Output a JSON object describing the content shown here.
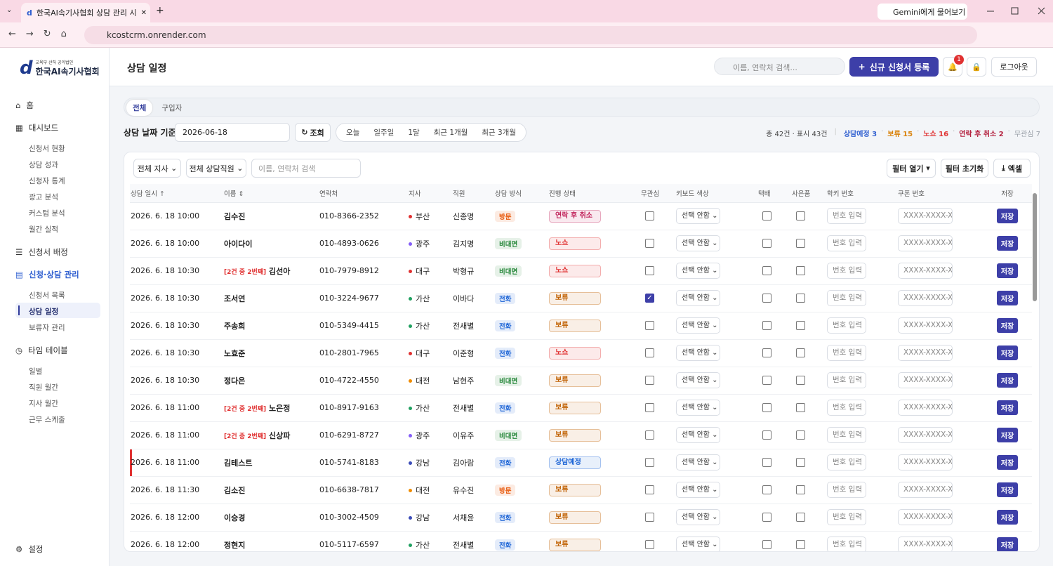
{
  "browser": {
    "tab_title": "한국AI속기사협회 상담 관리 시",
    "gemini": "Gemini에게 물어보기",
    "url": "kcostcrm.onrender.com"
  },
  "sidebar": {
    "logo_small": "교육부 산하 공익법인",
    "logo": "한국AI속기사협회",
    "sections": [
      {
        "label": "홈",
        "items": []
      },
      {
        "label": "대시보드",
        "items": [
          "신청서 현황",
          "상담 성과",
          "신청자 통계",
          "광고 분석",
          "커스텀 분석",
          "월간 실적"
        ]
      },
      {
        "label": "신청서 배정",
        "items": []
      },
      {
        "label": "신청·상담 관리",
        "active": true,
        "items": [
          "신청서 목록",
          "상담 일정",
          "보류자 관리"
        ],
        "active_item": 1
      },
      {
        "label": "타임 테이블",
        "items": [
          "일별",
          "직원 월간",
          "지사 월간",
          "근무 스케줄"
        ]
      }
    ],
    "settings": "설정"
  },
  "header": {
    "title": "상담 일정",
    "search_placeholder": "이름, 연락처 검색...",
    "new_button": "신규 신청서 등록",
    "badge": "1",
    "logout": "로그아웃"
  },
  "tabs": [
    "전체",
    "구입자"
  ],
  "date_filter": {
    "label": "상담 날짜 기준",
    "date": "2026-06-18",
    "query": "조회",
    "ranges": [
      "오늘",
      "일주일",
      "1달",
      "최근 1개월",
      "최근 3개월"
    ]
  },
  "summary": {
    "total": "총 42건 · 표시 43건",
    "stats": [
      {
        "text": "상담예정 3",
        "color": "#2f5fd0"
      },
      {
        "text": "보류 15",
        "color": "#d9820a"
      },
      {
        "text": "노쇼 16",
        "color": "#e03131"
      },
      {
        "text": "연락 후 취소 2",
        "color": "#b42340"
      },
      {
        "text": "무관심 7",
        "color": "#9aa0a8"
      }
    ]
  },
  "filters": {
    "branch": "전체 지사",
    "staff": "전체 상담직원",
    "search_placeholder": "이름, 연락처 검색",
    "open": "필터 열기",
    "reset": "필터 초기화",
    "excel": "엑셀"
  },
  "table": {
    "columns": [
      {
        "label": "상담 일시",
        "sort": "asc"
      },
      {
        "label": "이름",
        "sort": "both"
      },
      {
        "label": "연락처"
      },
      {
        "label": "지사"
      },
      {
        "label": "직원"
      },
      {
        "label": "상담 방식"
      },
      {
        "label": "진행 상태"
      },
      {
        "label": "무관심"
      },
      {
        "label": "키보드 색상"
      },
      {
        "label": "택배"
      },
      {
        "label": "사은품"
      },
      {
        "label": "학키 번호"
      },
      {
        "label": "쿠폰 번호"
      },
      {
        "label": "저장"
      }
    ],
    "select_default": "선택 안함",
    "number_placeholder": "번호 입력",
    "coupon_placeholder": "XXXX-XXXX-XXXX",
    "save": "저장",
    "rows": [
      {
        "datetime": "2026. 6. 18 10:00",
        "name": "김수진",
        "phone": "010-8366-2352",
        "branch": "부산",
        "branch_color": "#e03131",
        "staff": "신종명",
        "method": "방문",
        "method_color": "#e8590c",
        "status": "연락 후 취소",
        "status_color": "#c2255c",
        "interested": false
      },
      {
        "datetime": "2026. 6. 18 10:00",
        "name": "아이다이",
        "phone": "010-4893-0626",
        "branch": "광주",
        "branch_color": "#845ef7",
        "staff": "김지명",
        "method": "비대면",
        "method_color": "#2b8a3e",
        "status": "노쇼",
        "status_color": "#e03131",
        "interested": false
      },
      {
        "datetime": "2026. 6. 18 10:30",
        "tag": "[2건 중 2번째]",
        "name": "김선아",
        "phone": "010-7979-8912",
        "branch": "대구",
        "branch_color": "#e03131",
        "staff": "박형규",
        "method": "비대면",
        "method_color": "#2b8a3e",
        "status": "노쇼",
        "status_color": "#e03131",
        "interested": false
      },
      {
        "datetime": "2026. 6. 18 10:30",
        "name": "조서연",
        "phone": "010-3224-9677",
        "branch": "가산",
        "branch_color": "#20a060",
        "staff": "이바다",
        "method": "전화",
        "method_color": "#1c64d6",
        "status": "보류",
        "status_color": "#c06000",
        "interested": true
      },
      {
        "datetime": "2026. 6. 18 10:30",
        "name": "주송희",
        "phone": "010-5349-4415",
        "branch": "가산",
        "branch_color": "#20a060",
        "staff": "전새별",
        "method": "전화",
        "method_color": "#1c64d6",
        "status": "보류",
        "status_color": "#c06000",
        "interested": false
      },
      {
        "datetime": "2026. 6. 18 10:30",
        "name": "노효준",
        "phone": "010-2801-7965",
        "branch": "대구",
        "branch_color": "#e03131",
        "staff": "이준형",
        "method": "전화",
        "method_color": "#1c64d6",
        "status": "노쇼",
        "status_color": "#e03131",
        "interested": false
      },
      {
        "datetime": "2026. 6. 18 10:30",
        "name": "정다은",
        "phone": "010-4722-4550",
        "branch": "대전",
        "branch_color": "#f08c00",
        "staff": "남현주",
        "method": "비대면",
        "method_color": "#2b8a3e",
        "status": "보류",
        "status_color": "#c06000",
        "interested": false
      },
      {
        "datetime": "2026. 6. 18 11:00",
        "tag": "[2건 중 2번째]",
        "name": "노은정",
        "phone": "010-8917-9163",
        "branch": "가산",
        "branch_color": "#20a060",
        "staff": "전새별",
        "method": "전화",
        "method_color": "#1c64d6",
        "status": "보류",
        "status_color": "#c06000",
        "interested": false
      },
      {
        "datetime": "2026. 6. 18 11:00",
        "tag": "[2건 중 2번째]",
        "name": "신상파",
        "phone": "010-6291-8727",
        "branch": "광주",
        "branch_color": "#845ef7",
        "staff": "이유주",
        "method": "비대면",
        "method_color": "#2b8a3e",
        "status": "보류",
        "status_color": "#c06000",
        "interested": false
      },
      {
        "datetime": "2026. 6. 18 11:00",
        "name": "김테스트",
        "phone": "010-5741-8183",
        "branch": "강남",
        "branch_color": "#3b4cb8",
        "staff": "김아람",
        "method": "전화",
        "method_color": "#1c64d6",
        "status": "상담예정",
        "status_color": "#1c64d6",
        "interested": false,
        "highlight": true
      },
      {
        "datetime": "2026. 6. 18 11:30",
        "name": "김소진",
        "phone": "010-6638-7817",
        "branch": "대전",
        "branch_color": "#f08c00",
        "staff": "유수진",
        "method": "방문",
        "method_color": "#e8590c",
        "status": "보류",
        "status_color": "#c06000",
        "interested": false
      },
      {
        "datetime": "2026. 6. 18 12:00",
        "name": "이승경",
        "phone": "010-3002-4509",
        "branch": "강남",
        "branch_color": "#3b4cb8",
        "staff": "서채윤",
        "method": "전화",
        "method_color": "#1c64d6",
        "status": "보류",
        "status_color": "#c06000",
        "interested": false
      },
      {
        "datetime": "2026. 6. 18 12:00",
        "name": "정현지",
        "phone": "010-5117-6597",
        "branch": "가산",
        "branch_color": "#20a060",
        "staff": "전새별",
        "method": "전화",
        "method_color": "#1c64d6",
        "status": "보류",
        "status_color": "#c06000",
        "interested": false
      }
    ]
  }
}
